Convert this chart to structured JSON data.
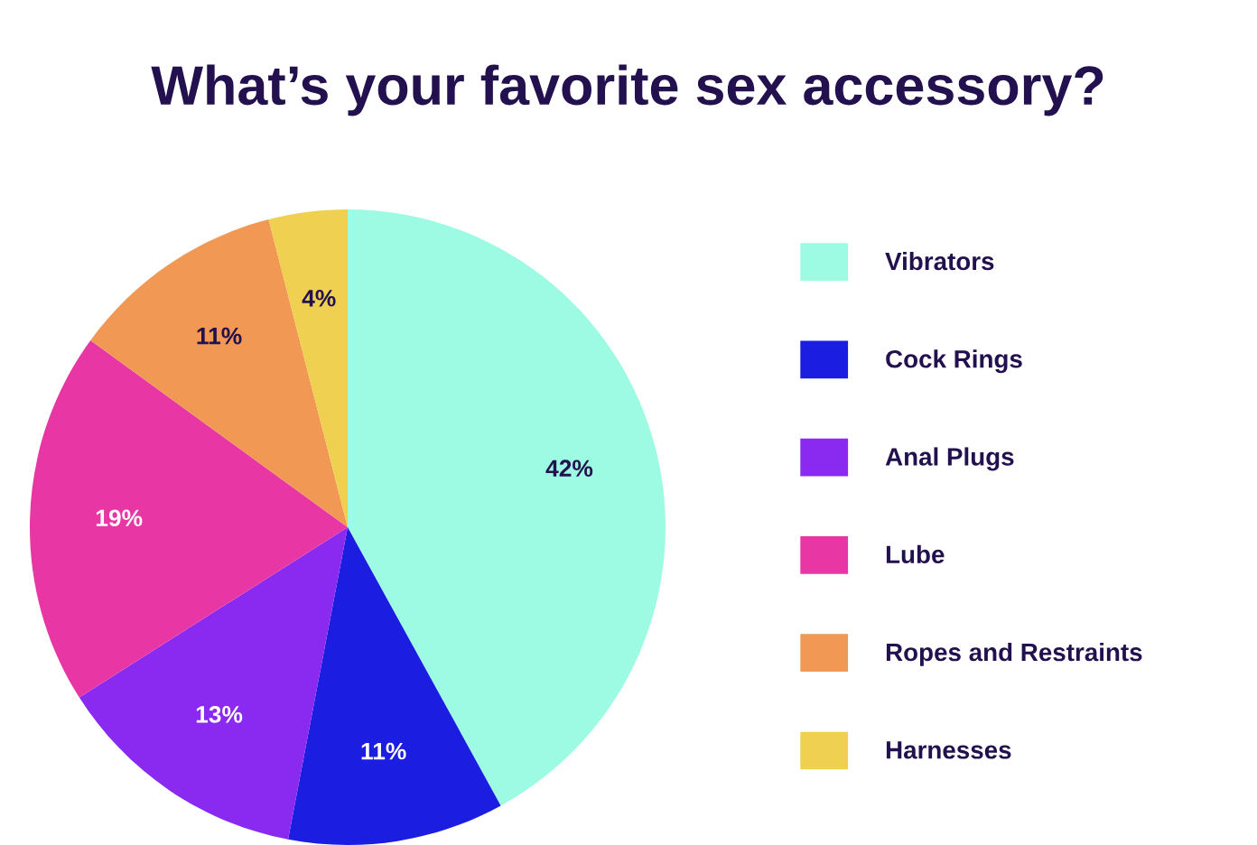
{
  "chart_data": {
    "type": "pie",
    "title": "What’s your favorite sex accessory?",
    "categories": [
      "Vibrators",
      "Cock Rings",
      "Anal Plugs",
      "Lube",
      "Ropes and Restraints",
      "Harnesses"
    ],
    "values": [
      42,
      11,
      13,
      19,
      11,
      4
    ],
    "colors": [
      "#9cfbe2",
      "#1b1ee0",
      "#8a2af0",
      "#e837a5",
      "#f09854",
      "#f0d050"
    ],
    "value_labels": [
      "42%",
      "11%",
      "13%",
      "19%",
      "11%",
      "4%"
    ],
    "legend": "right"
  }
}
